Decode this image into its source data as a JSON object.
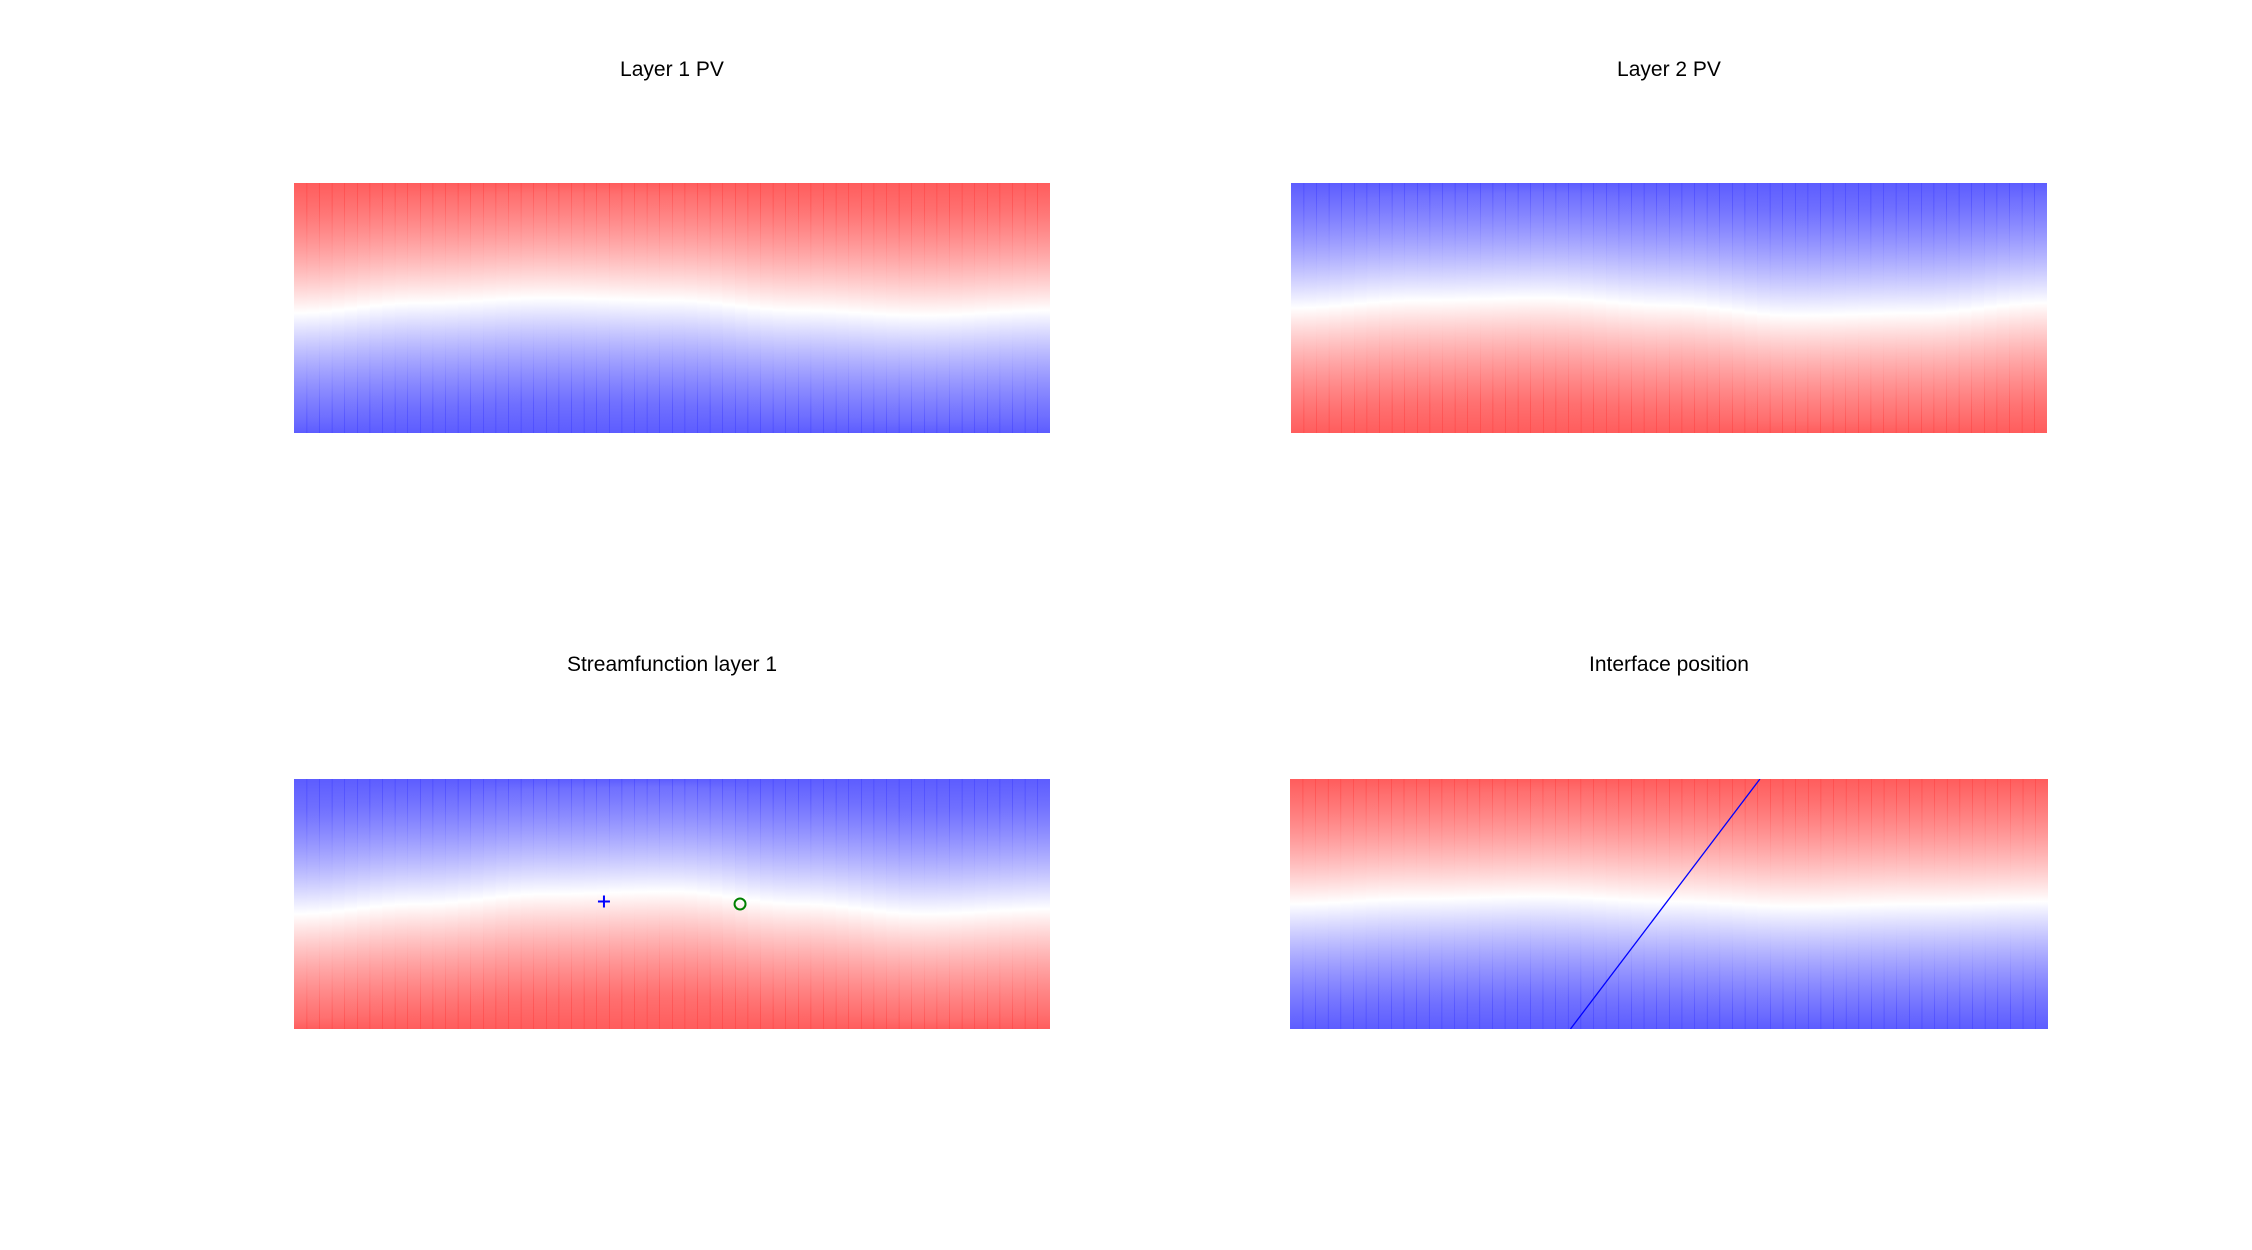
{
  "figure": {
    "background": "#ffffff",
    "colors": {
      "red": "#ff4040",
      "white": "#ffffff",
      "blue": "#4040ff",
      "line": "#0000ff",
      "marker_circle": "#008000",
      "marker_plus": "#0000ff"
    }
  },
  "chart_data": [
    {
      "type": "heatmap",
      "title": "Layer 1 PV",
      "colormap": "red-white-blue",
      "top_color": "red",
      "bottom_color": "blue",
      "interface_profile": [
        0.52,
        0.48,
        0.46,
        0.47,
        0.51,
        0.53,
        0.51
      ],
      "xlabel": "",
      "ylabel": ""
    },
    {
      "type": "heatmap",
      "title": "Layer 2 PV",
      "colormap": "blue-white-red",
      "top_color": "blue",
      "bottom_color": "red",
      "interface_profile": [
        0.5,
        0.47,
        0.46,
        0.49,
        0.53,
        0.52,
        0.48
      ],
      "xlabel": "",
      "ylabel": ""
    },
    {
      "type": "heatmap",
      "title": "Streamfunction layer 1",
      "colormap": "blue-white-red",
      "top_color": "blue",
      "bottom_color": "red",
      "interface_profile": [
        0.54,
        0.5,
        0.46,
        0.45,
        0.5,
        0.54,
        0.52
      ],
      "markers": [
        {
          "symbol": "+",
          "x": 0.41,
          "y": 0.49,
          "color": "#0000ff"
        },
        {
          "symbol": "o",
          "x": 0.59,
          "y": 0.5,
          "color": "#008000"
        }
      ],
      "xlabel": "",
      "ylabel": ""
    },
    {
      "type": "heatmap",
      "title": "Interface position",
      "colormap": "red-white-blue",
      "top_color": "red",
      "bottom_color": "blue",
      "interface_profile": [
        0.5,
        0.48,
        0.47,
        0.49,
        0.51,
        0.5,
        0.49
      ],
      "line": {
        "x": [
          0.62,
          0.37
        ],
        "y": [
          0.0,
          1.0
        ],
        "color": "#0000ff"
      },
      "xlabel": "",
      "ylabel": ""
    }
  ]
}
